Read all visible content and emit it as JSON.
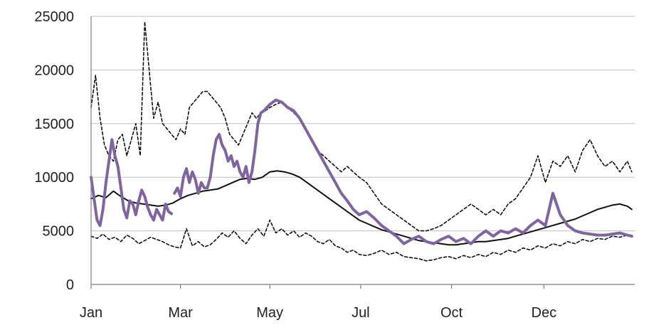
{
  "chart_data": {
    "type": "line",
    "title": "",
    "xlabel": "",
    "ylabel": "",
    "ylim": [
      0,
      25000
    ],
    "yticks": [
      0,
      5000,
      10000,
      15000,
      20000,
      25000
    ],
    "ytick_labels": [
      "0",
      "5000",
      "10000",
      "15000",
      "20000",
      "25000"
    ],
    "xlim": [
      0,
      365
    ],
    "xticks": [
      {
        "label": "Jan",
        "day": 0
      },
      {
        "label": "Mar",
        "day": 60
      },
      {
        "label": "May",
        "day": 120
      },
      {
        "label": "Jul",
        "day": 181
      },
      {
        "label": "Oct",
        "day": 242
      },
      {
        "label": "Dec",
        "day": 304
      }
    ],
    "grid": "horizontal",
    "legend": "none",
    "series": [
      {
        "style": "dotted-upper",
        "color": "#111111",
        "x": [
          0,
          3,
          6,
          9,
          12,
          15,
          18,
          21,
          24,
          27,
          30,
          33,
          36,
          39,
          42,
          45,
          48,
          51,
          54,
          57,
          60,
          63,
          66,
          69,
          72,
          75,
          78,
          81,
          84,
          87,
          90,
          93,
          96,
          99,
          102,
          105,
          108,
          111,
          114,
          117,
          120,
          124,
          128,
          132,
          136,
          140,
          144,
          148,
          152,
          156,
          160,
          164,
          168,
          172,
          176,
          180,
          185,
          190,
          195,
          200,
          205,
          210,
          215,
          220,
          225,
          230,
          235,
          240,
          245,
          250,
          255,
          260,
          265,
          270,
          275,
          280,
          285,
          290,
          295,
          300,
          305,
          310,
          315,
          320,
          325,
          330,
          335,
          340,
          345,
          350,
          355,
          360,
          363
        ],
        "y": [
          16500,
          19500,
          15500,
          13000,
          12000,
          11500,
          13500,
          14000,
          12000,
          13500,
          15000,
          12000,
          24500,
          20000,
          15500,
          17000,
          15000,
          14500,
          14000,
          13500,
          14500,
          14000,
          16500,
          17000,
          17500,
          18000,
          18000,
          17500,
          17000,
          16500,
          15500,
          14000,
          13500,
          13000,
          14000,
          15000,
          16000,
          15500,
          16000,
          16200,
          16500,
          16800,
          17000,
          16500,
          16000,
          15500,
          14500,
          13500,
          12500,
          12000,
          11500,
          11000,
          10500,
          11000,
          10500,
          10000,
          9500,
          8500,
          7500,
          7000,
          6500,
          6000,
          5500,
          5000,
          5000,
          5200,
          5500,
          6000,
          6500,
          7000,
          7500,
          7000,
          6500,
          7000,
          6500,
          7500,
          8000,
          9000,
          10000,
          12000,
          9500,
          11500,
          11000,
          12000,
          10500,
          12500,
          13500,
          12000,
          11000,
          11500,
          10500,
          11500,
          10500
        ]
      },
      {
        "style": "dotted-lower",
        "color": "#111111",
        "x": [
          0,
          4,
          8,
          12,
          16,
          20,
          24,
          28,
          32,
          36,
          40,
          44,
          48,
          52,
          56,
          60,
          64,
          68,
          72,
          76,
          80,
          84,
          88,
          92,
          96,
          100,
          104,
          108,
          112,
          116,
          120,
          124,
          128,
          132,
          136,
          140,
          144,
          148,
          152,
          156,
          160,
          164,
          168,
          172,
          176,
          180,
          185,
          190,
          195,
          200,
          205,
          210,
          215,
          220,
          225,
          230,
          235,
          240,
          245,
          250,
          255,
          260,
          265,
          270,
          275,
          280,
          285,
          290,
          295,
          300,
          305,
          310,
          315,
          320,
          325,
          330,
          335,
          340,
          345,
          350,
          355,
          360,
          363
        ],
        "y": [
          4500,
          4300,
          4700,
          4200,
          4400,
          4000,
          4600,
          4300,
          3800,
          4100,
          4400,
          4200,
          4000,
          3700,
          3500,
          3400,
          5200,
          3600,
          4000,
          3500,
          3700,
          4200,
          4800,
          4400,
          5000,
          4300,
          3800,
          4600,
          5200,
          4500,
          6000,
          4800,
          5200,
          4600,
          5000,
          4400,
          4800,
          4500,
          4000,
          3800,
          4200,
          3600,
          3400,
          3000,
          3200,
          2800,
          2700,
          2900,
          3200,
          2800,
          3000,
          2600,
          2500,
          2400,
          2200,
          2300,
          2500,
          2600,
          2400,
          2700,
          2500,
          2800,
          2600,
          3000,
          2800,
          3200,
          3000,
          3400,
          3200,
          3600,
          3400,
          3800,
          3600,
          4000,
          3800,
          4200,
          4000,
          4300,
          4200,
          4500,
          4400,
          4600,
          4500
        ]
      },
      {
        "style": "solid-black",
        "color": "#111111",
        "x": [
          0,
          5,
          10,
          15,
          20,
          25,
          30,
          35,
          40,
          45,
          50,
          55,
          60,
          65,
          70,
          75,
          80,
          85,
          90,
          95,
          100,
          105,
          110,
          115,
          120,
          125,
          130,
          135,
          140,
          145,
          150,
          155,
          160,
          165,
          170,
          175,
          180,
          185,
          190,
          195,
          200,
          205,
          210,
          215,
          220,
          225,
          230,
          235,
          240,
          245,
          250,
          255,
          260,
          265,
          270,
          275,
          280,
          285,
          290,
          295,
          300,
          305,
          310,
          315,
          320,
          325,
          330,
          335,
          340,
          345,
          350,
          355,
          360,
          363
        ],
        "y": [
          8000,
          8300,
          8100,
          8700,
          8200,
          7800,
          7600,
          7500,
          7400,
          7300,
          7400,
          7600,
          8000,
          8300,
          8500,
          8700,
          8800,
          8900,
          9200,
          9500,
          9800,
          9900,
          9800,
          10000,
          10500,
          10600,
          10500,
          10300,
          10000,
          9500,
          9000,
          8500,
          8000,
          7500,
          7000,
          6500,
          6000,
          5700,
          5400,
          5100,
          4900,
          4700,
          4500,
          4300,
          4100,
          4000,
          3900,
          3800,
          3700,
          3700,
          3800,
          3900,
          4000,
          4000,
          4100,
          4200,
          4300,
          4500,
          4700,
          4900,
          5100,
          5300,
          5500,
          5700,
          5900,
          6100,
          6400,
          6700,
          7000,
          7200,
          7400,
          7500,
          7300,
          7000
        ]
      },
      {
        "style": "purple-thick",
        "color": "#8064a2",
        "x": [
          0,
          2,
          4,
          6,
          8,
          10,
          12,
          14,
          16,
          18,
          20,
          22,
          24,
          26,
          28,
          30,
          32,
          34,
          36,
          38,
          40,
          42,
          44,
          46,
          48,
          50,
          52,
          54,
          null,
          56,
          58,
          60,
          62,
          64,
          66,
          68,
          70,
          72,
          74,
          76,
          78,
          80,
          82,
          84,
          86,
          88,
          90,
          92,
          94,
          96,
          98,
          100,
          102,
          104,
          106,
          108,
          110,
          112,
          114,
          116,
          118,
          120,
          124,
          128,
          132,
          136,
          140,
          144,
          148,
          152,
          156,
          160,
          164,
          168,
          172,
          176,
          180,
          185,
          190,
          195,
          200,
          205,
          210,
          215,
          220,
          225,
          230,
          235,
          240,
          245,
          250,
          255,
          260,
          265,
          270,
          275,
          280,
          285,
          290,
          295,
          300,
          305,
          310,
          315,
          320,
          325,
          330,
          335,
          340,
          345,
          350,
          355,
          360,
          363
        ],
        "y": [
          10000,
          8000,
          6000,
          5500,
          7000,
          9500,
          11500,
          13500,
          12000,
          11000,
          9000,
          7000,
          6200,
          7800,
          7500,
          6500,
          7800,
          8800,
          8200,
          7200,
          6500,
          6000,
          7000,
          6500,
          6000,
          7500,
          6800,
          6600,
          null,
          8500,
          9000,
          8200,
          10000,
          10800,
          9500,
          10500,
          9800,
          8500,
          9500,
          9000,
          9000,
          10000,
          12000,
          13500,
          14000,
          13000,
          12500,
          11500,
          12000,
          11000,
          11500,
          10500,
          10000,
          11000,
          9500,
          10500,
          12500,
          15000,
          16000,
          16200,
          16500,
          16800,
          17200,
          17000,
          16500,
          16200,
          15500,
          14500,
          13500,
          12500,
          11500,
          10500,
          9500,
          8500,
          7800,
          7000,
          6500,
          6800,
          6200,
          5500,
          5000,
          4500,
          3800,
          4200,
          4500,
          4000,
          3800,
          4200,
          4500,
          4000,
          4300,
          3800,
          4500,
          5000,
          4500,
          5000,
          4800,
          5200,
          4800,
          5500,
          6000,
          5500,
          8500,
          6500,
          5500,
          5000,
          4800,
          4700,
          4600,
          4600,
          4700,
          4800,
          4600,
          4500
        ]
      }
    ]
  }
}
